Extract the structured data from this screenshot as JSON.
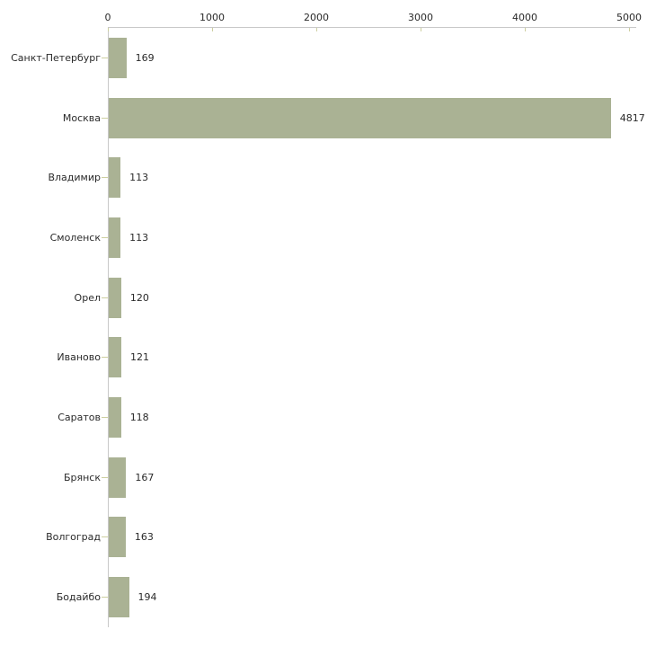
{
  "chart_data": {
    "type": "bar",
    "orientation": "horizontal",
    "title": "",
    "xlabel": "",
    "ylabel": "",
    "categories": [
      "Санкт-Петербург",
      "Москва",
      "Владимир",
      "Смоленск",
      "Орел",
      "Иваново",
      "Саратов",
      "Брянск",
      "Волгоград",
      "Бодайбо"
    ],
    "values": [
      169,
      4817,
      113,
      113,
      120,
      121,
      118,
      167,
      163,
      194
    ],
    "value_labels": [
      "169",
      "4817",
      "113",
      "113",
      "120",
      "121",
      "118",
      "167",
      "163",
      "194"
    ],
    "xlim": [
      0,
      5000
    ],
    "xticks": [
      0,
      1000,
      2000,
      3000,
      4000,
      5000
    ],
    "xtick_labels": [
      "0",
      "1000",
      "2000",
      "3000",
      "4000",
      "5000"
    ],
    "grid": false,
    "legend": null,
    "axis_position": "top",
    "colors": {
      "bar_fill": "#aab294",
      "axis_line": "#c8c8c8",
      "tick_mark": "#cdcfa0",
      "text": "#2a2a2a",
      "background": "#ffffff"
    }
  }
}
